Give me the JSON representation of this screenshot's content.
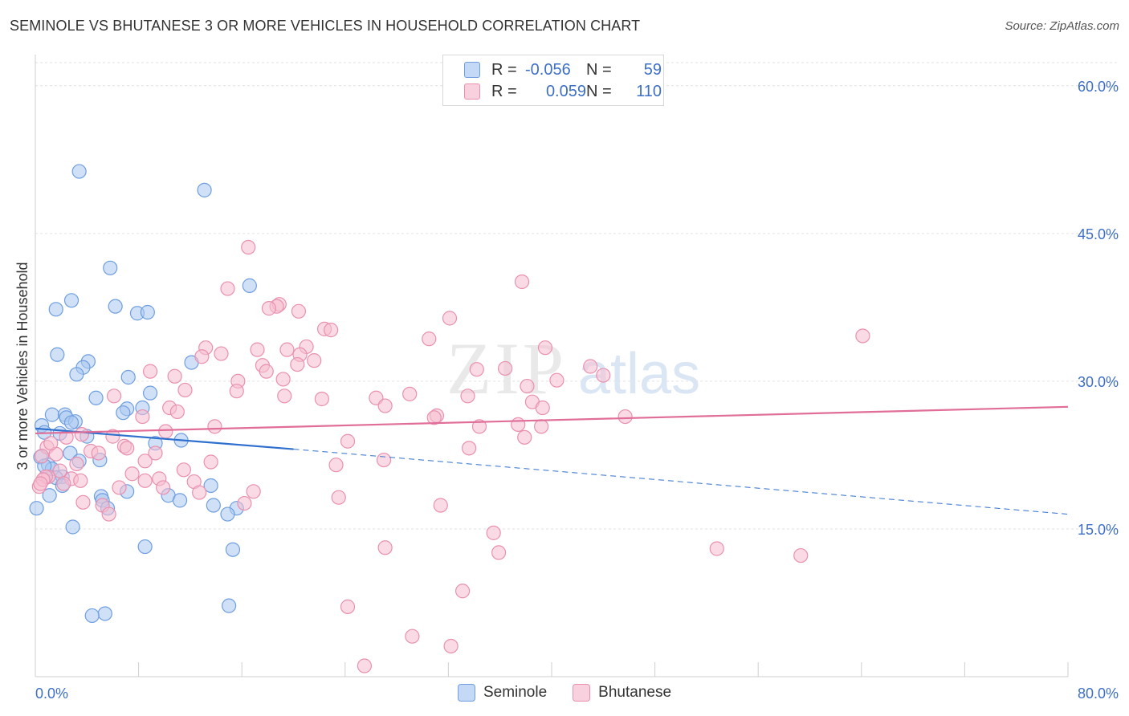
{
  "title": "SEMINOLE VS BHUTANESE 3 OR MORE VEHICLES IN HOUSEHOLD CORRELATION CHART",
  "source": "Source: ZipAtlas.com",
  "watermark": {
    "zip": "ZIP",
    "atlas": "atlas"
  },
  "legend": {
    "r_label": "R =",
    "n_label": "N =",
    "rows": [
      {
        "name": "Seminole",
        "r": "-0.056",
        "n": "59",
        "color": "#a9c8f0",
        "stroke": "#6f9ee0"
      },
      {
        "name": "Bhutanese",
        "r": "0.059",
        "n": "110",
        "color": "#f6bdd0",
        "stroke": "#e990b0"
      }
    ]
  },
  "chart_data": {
    "type": "scatter",
    "xlabel": "",
    "ylabel": "3 or more Vehicles in Household",
    "xlim": [
      0,
      80
    ],
    "ylim": [
      0,
      63
    ],
    "x_tick_labels": [
      "0.0%",
      "80.0%"
    ],
    "y_ticks": [
      15,
      30,
      45,
      60
    ],
    "y_tick_labels": [
      "15.0%",
      "30.0%",
      "45.0%",
      "60.0%"
    ],
    "grid": true,
    "series": [
      {
        "name": "Seminole",
        "color": "#a9c8f0",
        "stroke": "#6f9ee0",
        "trend": {
          "x0": 0,
          "y0": 25.2,
          "x1": 20,
          "y1": 23.1,
          "dash_x1": 80,
          "dash_y1": 16.5,
          "color": "#2f6fce"
        },
        "points": [
          [
            3.4,
            51.3
          ],
          [
            13.1,
            49.4
          ],
          [
            5.8,
            41.5
          ],
          [
            16.6,
            39.7
          ],
          [
            2.8,
            38.2
          ],
          [
            1.6,
            37.3
          ],
          [
            6.2,
            37.6
          ],
          [
            7.9,
            36.9
          ],
          [
            8.7,
            37.0
          ],
          [
            1.7,
            32.7
          ],
          [
            4.1,
            32.0
          ],
          [
            3.7,
            31.4
          ],
          [
            12.1,
            31.9
          ],
          [
            3.2,
            30.7
          ],
          [
            7.2,
            30.4
          ],
          [
            8.9,
            28.8
          ],
          [
            4.7,
            28.3
          ],
          [
            8.3,
            27.3
          ],
          [
            7.1,
            27.2
          ],
          [
            6.8,
            26.8
          ],
          [
            1.3,
            26.6
          ],
          [
            2.3,
            26.6
          ],
          [
            0.5,
            25.5
          ],
          [
            2.4,
            26.3
          ],
          [
            3.1,
            25.9
          ],
          [
            2.8,
            25.8
          ],
          [
            0.7,
            24.8
          ],
          [
            1.9,
            24.7
          ],
          [
            4.0,
            24.4
          ],
          [
            11.3,
            24.0
          ],
          [
            9.3,
            23.7
          ],
          [
            2.7,
            22.7
          ],
          [
            0.4,
            22.3
          ],
          [
            5.0,
            22.0
          ],
          [
            3.4,
            21.9
          ],
          [
            1.0,
            21.5
          ],
          [
            1.3,
            21.1
          ],
          [
            0.7,
            21.4
          ],
          [
            2.1,
            20.3
          ],
          [
            1.6,
            20.2
          ],
          [
            2.1,
            19.4
          ],
          [
            7.1,
            18.8
          ],
          [
            1.1,
            18.4
          ],
          [
            10.3,
            18.4
          ],
          [
            5.1,
            18.3
          ],
          [
            5.2,
            17.9
          ],
          [
            11.2,
            17.9
          ],
          [
            13.6,
            19.4
          ],
          [
            13.8,
            17.4
          ],
          [
            15.6,
            17.1
          ],
          [
            0.1,
            17.1
          ],
          [
            5.6,
            17.1
          ],
          [
            14.9,
            16.5
          ],
          [
            2.9,
            15.2
          ],
          [
            8.5,
            13.2
          ],
          [
            15.3,
            12.9
          ],
          [
            15.0,
            7.2
          ],
          [
            5.4,
            6.4
          ],
          [
            4.4,
            6.2
          ]
        ]
      },
      {
        "name": "Bhutanese",
        "color": "#f6bdd0",
        "stroke": "#e990b0",
        "trend": {
          "x0": 0,
          "y0": 24.7,
          "x1": 80,
          "y1": 27.4,
          "color": "#e06e98"
        },
        "points": [
          [
            16.5,
            43.6
          ],
          [
            37.7,
            40.1
          ],
          [
            14.9,
            39.4
          ],
          [
            18.9,
            37.8
          ],
          [
            18.7,
            37.6
          ],
          [
            18.1,
            37.4
          ],
          [
            20.4,
            37.1
          ],
          [
            32.1,
            36.4
          ],
          [
            22.4,
            35.3
          ],
          [
            22.9,
            35.2
          ],
          [
            30.5,
            34.3
          ],
          [
            64.1,
            34.6
          ],
          [
            13.2,
            33.4
          ],
          [
            17.2,
            33.2
          ],
          [
            14.4,
            32.8
          ],
          [
            12.9,
            32.5
          ],
          [
            19.5,
            33.2
          ],
          [
            21.0,
            33.5
          ],
          [
            39.5,
            33.4
          ],
          [
            20.5,
            32.7
          ],
          [
            21.6,
            32.1
          ],
          [
            17.6,
            31.6
          ],
          [
            20.3,
            31.7
          ],
          [
            36.4,
            31.3
          ],
          [
            34.2,
            31.2
          ],
          [
            43.0,
            31.5
          ],
          [
            8.9,
            31.0
          ],
          [
            17.9,
            31.0
          ],
          [
            10.8,
            30.5
          ],
          [
            19.2,
            30.2
          ],
          [
            40.4,
            30.1
          ],
          [
            15.7,
            30.0
          ],
          [
            44.0,
            30.6
          ],
          [
            38.1,
            29.5
          ],
          [
            11.6,
            29.1
          ],
          [
            15.6,
            29.0
          ],
          [
            29.0,
            28.7
          ],
          [
            6.1,
            28.5
          ],
          [
            33.5,
            28.5
          ],
          [
            19.3,
            28.5
          ],
          [
            26.4,
            28.3
          ],
          [
            22.2,
            28.2
          ],
          [
            38.5,
            27.9
          ],
          [
            27.1,
            27.5
          ],
          [
            39.3,
            27.3
          ],
          [
            10.4,
            27.3
          ],
          [
            11.0,
            26.9
          ],
          [
            8.3,
            26.4
          ],
          [
            45.7,
            26.4
          ],
          [
            31.1,
            26.5
          ],
          [
            30.9,
            26.3
          ],
          [
            37.4,
            25.6
          ],
          [
            34.4,
            25.4
          ],
          [
            39.2,
            25.4
          ],
          [
            13.9,
            25.4
          ],
          [
            10.1,
            24.9
          ],
          [
            3.6,
            24.6
          ],
          [
            37.9,
            24.3
          ],
          [
            24.2,
            23.9
          ],
          [
            0.9,
            23.3
          ],
          [
            6.9,
            23.4
          ],
          [
            7.1,
            23.2
          ],
          [
            33.6,
            23.2
          ],
          [
            4.3,
            22.9
          ],
          [
            9.3,
            22.7
          ],
          [
            1.6,
            22.6
          ],
          [
            4.9,
            22.7
          ],
          [
            0.5,
            22.4
          ],
          [
            27.0,
            22.0
          ],
          [
            8.5,
            21.9
          ],
          [
            3.2,
            21.6
          ],
          [
            13.6,
            21.8
          ],
          [
            23.3,
            21.5
          ],
          [
            11.5,
            21.0
          ],
          [
            1.9,
            20.9
          ],
          [
            7.5,
            20.6
          ],
          [
            1.0,
            20.3
          ],
          [
            2.8,
            20.1
          ],
          [
            0.8,
            20.3
          ],
          [
            9.6,
            20.1
          ],
          [
            3.5,
            19.9
          ],
          [
            8.5,
            19.9
          ],
          [
            12.3,
            19.8
          ],
          [
            2.2,
            19.6
          ],
          [
            0.3,
            19.3
          ],
          [
            6.5,
            19.2
          ],
          [
            9.9,
            19.2
          ],
          [
            12.7,
            18.7
          ],
          [
            16.9,
            18.8
          ],
          [
            23.5,
            18.2
          ],
          [
            3.7,
            17.7
          ],
          [
            5.2,
            17.4
          ],
          [
            16.2,
            17.6
          ],
          [
            31.4,
            17.4
          ],
          [
            5.7,
            16.5
          ],
          [
            35.5,
            14.6
          ],
          [
            27.1,
            13.1
          ],
          [
            35.9,
            12.6
          ],
          [
            52.8,
            13.0
          ],
          [
            59.3,
            12.3
          ],
          [
            33.1,
            8.7
          ],
          [
            24.2,
            7.1
          ],
          [
            29.2,
            4.1
          ],
          [
            32.2,
            3.1
          ],
          [
            25.5,
            1.1
          ],
          [
            0.6,
            20.0
          ],
          [
            0.4,
            19.6
          ],
          [
            1.2,
            23.7
          ],
          [
            2.4,
            24.3
          ],
          [
            6.0,
            24.4
          ]
        ]
      }
    ]
  }
}
